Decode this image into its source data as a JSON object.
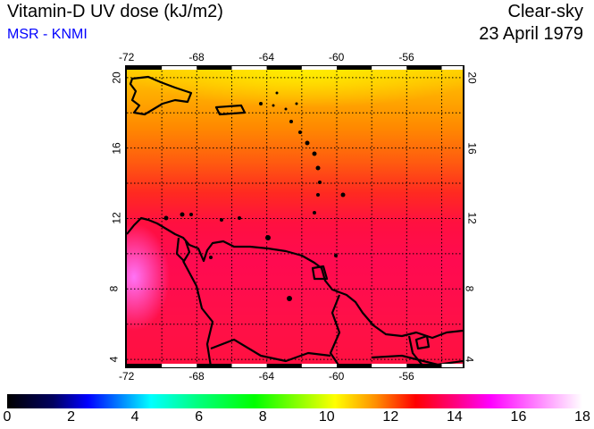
{
  "header": {
    "title": "Vitamin-D UV dose (kJ/m2)",
    "source": "MSR - KNMI",
    "sky": "Clear-sky",
    "date": "23 April 1979"
  },
  "map": {
    "lon_ticks": [
      "-72",
      "-68",
      "-64",
      "-60",
      "-56"
    ],
    "lat_ticks": [
      "20",
      "16",
      "12",
      "8",
      "4"
    ],
    "lon_values": [
      -72,
      -68,
      -64,
      -60,
      -56
    ],
    "lat_values": [
      20,
      16,
      12,
      8,
      4
    ],
    "lon_range": [
      -72,
      -52.8
    ],
    "lat_range": [
      3.6,
      20.6
    ],
    "grid_step_deg": 2
  },
  "colorbar": {
    "labels": [
      "0",
      "2",
      "4",
      "6",
      "8",
      "10",
      "12",
      "14",
      "16",
      "18"
    ],
    "range": [
      0,
      18
    ],
    "unit": "kJ/m2"
  }
}
